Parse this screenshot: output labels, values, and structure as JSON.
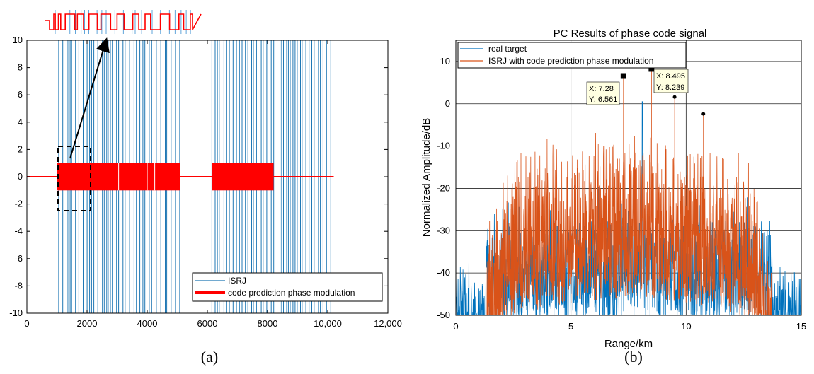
{
  "chart_data": [
    {
      "id": "a",
      "type": "line",
      "caption": "(a)",
      "xlim": [
        0,
        12000
      ],
      "ylim": [
        -10,
        10
      ],
      "x_ticks": [
        0,
        2000,
        4000,
        6000,
        8000,
        10000,
        12000
      ],
      "x_tick_labels": [
        "0",
        "2000",
        "4000",
        "6000",
        "8000",
        "10,000",
        "12,000"
      ],
      "y_ticks": [
        10,
        8,
        6,
        4,
        2,
        0,
        -2,
        -4,
        -6,
        -8,
        -10
      ],
      "y_tick_labels": [
        "10",
        "8",
        "6",
        "4",
        "2",
        "0",
        "-2",
        "-4",
        "-6",
        "-8",
        "-10"
      ],
      "grid": false,
      "legend_position": "bottom-right",
      "series": [
        {
          "name": "ISRJ",
          "color": "#1f77b4",
          "style": "spikes",
          "segments": [
            [
              1000,
              5100
            ],
            [
              6150,
              10200
            ]
          ],
          "amplitude": 10
        },
        {
          "name": "code prediction phase modulation",
          "color": "#ff0000",
          "style": "binary-phase",
          "active_segments": [
            [
              1000,
              5100
            ],
            [
              6150,
              8200
            ]
          ],
          "amplitude": 1,
          "x_range": [
            0,
            10200
          ]
        }
      ],
      "annotations": [
        {
          "type": "dashed-box",
          "x_range": [
            1000,
            2100
          ],
          "y_range": [
            -2.5,
            2.3
          ]
        },
        {
          "type": "arrow-to-inset",
          "from": [
            1450,
            1.3
          ]
        }
      ]
    },
    {
      "id": "b",
      "type": "line",
      "caption": "(b)",
      "title": "PC Results of phase code signal",
      "xlabel": "Range/km",
      "ylabel": "Normalized Amplitude/dB",
      "xlim": [
        0,
        15
      ],
      "ylim": [
        -50,
        15
      ],
      "x_ticks": [
        0,
        5,
        10,
        15
      ],
      "x_tick_labels": [
        "0",
        "5",
        "10",
        "15"
      ],
      "y_ticks": [
        10,
        0,
        -10,
        -20,
        -30,
        -40,
        -50
      ],
      "y_tick_labels": [
        "10",
        "0",
        "-10",
        "-20",
        "-30",
        "-40",
        "-50"
      ],
      "grid": true,
      "legend_position": "top-left",
      "series": [
        {
          "name": "real target",
          "color": "#0072bd",
          "x_range": [
            0,
            15
          ]
        },
        {
          "name": "ISRJ with code prediction phase modulation",
          "color": "#d95319",
          "x_range": [
            1.3,
            13.7
          ]
        }
      ],
      "peaks": [
        {
          "x": 7.28,
          "y": 6.561,
          "marker": "square"
        },
        {
          "x": 8.495,
          "y": 8.239,
          "marker": "square"
        },
        {
          "x": 9.5,
          "y": 1.6,
          "marker": "dot"
        },
        {
          "x": 10.75,
          "y": -2.4,
          "marker": "dot"
        }
      ],
      "datatips": [
        {
          "x_text": "X: 7.28",
          "y_text": "Y: 6.561"
        },
        {
          "x_text": "X: 8.495",
          "y_text": "Y: 8.239"
        }
      ]
    }
  ]
}
